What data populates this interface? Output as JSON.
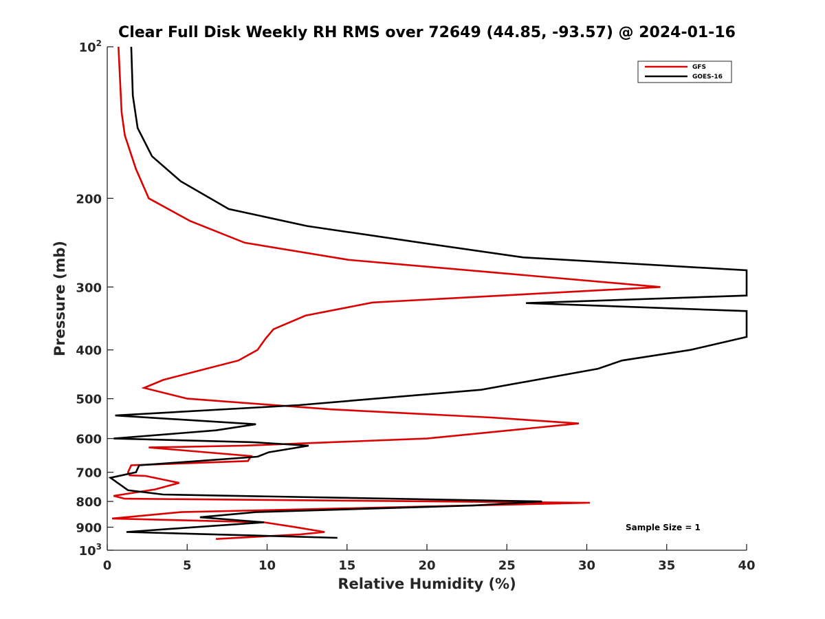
{
  "chart_data": {
    "type": "line",
    "title": "Clear Full Disk Weekly RH RMS over 72649 (44.85, -93.57) @ 2024-01-16",
    "xlabel": "Relative Humidity (%)",
    "ylabel": "Pressure (mb)",
    "xlim": [
      0,
      40
    ],
    "ylim": [
      100,
      1000
    ],
    "y_scale": "log",
    "y_reversed": true,
    "x_ticks": [
      "0",
      "5",
      "10",
      "15",
      "20",
      "25",
      "30",
      "35",
      "40"
    ],
    "y_ticks": [
      {
        "value": 100,
        "base": "10",
        "exp": "2"
      },
      {
        "value": 200,
        "label": "200"
      },
      {
        "value": 300,
        "label": "300"
      },
      {
        "value": 400,
        "label": "400"
      },
      {
        "value": 500,
        "label": "500"
      },
      {
        "value": 600,
        "label": "600"
      },
      {
        "value": 700,
        "label": "700"
      },
      {
        "value": 800,
        "label": "800"
      },
      {
        "value": 900,
        "label": "900"
      },
      {
        "value": 1000,
        "base": "10",
        "exp": "3"
      }
    ],
    "grid": false,
    "legend_position": "top-right",
    "series": [
      {
        "name": "GFS",
        "color": "#dd0000",
        "points": [
          [
            0.7,
            100
          ],
          [
            0.9,
            135
          ],
          [
            1.1,
            150
          ],
          [
            1.8,
            175
          ],
          [
            2.6,
            200
          ],
          [
            5.2,
            222
          ],
          [
            8.6,
            245
          ],
          [
            15.1,
            265
          ],
          [
            34.6,
            300
          ],
          [
            16.6,
            322
          ],
          [
            12.4,
            342
          ],
          [
            10.4,
            364
          ],
          [
            9.9,
            380
          ],
          [
            9.4,
            400
          ],
          [
            8.2,
            420
          ],
          [
            6.2,
            436
          ],
          [
            3.5,
            459
          ],
          [
            2.3,
            476
          ],
          [
            5.0,
            500
          ],
          [
            14.0,
            525
          ],
          [
            24.0,
            545
          ],
          [
            29.5,
            560
          ],
          [
            20.0,
            600
          ],
          [
            8.5,
            620
          ],
          [
            2.6,
            625
          ],
          [
            9.0,
            650
          ],
          [
            8.8,
            665
          ],
          [
            1.5,
            678
          ],
          [
            1.3,
            700
          ],
          [
            1.4,
            710
          ],
          [
            2.4,
            712
          ],
          [
            4.5,
            735
          ],
          [
            3.0,
            757
          ],
          [
            0.4,
            780
          ],
          [
            1.1,
            790
          ],
          [
            30.2,
            805
          ],
          [
            4.6,
            840
          ],
          [
            0.3,
            865
          ],
          [
            9.8,
            880
          ],
          [
            11.6,
            898
          ],
          [
            13.6,
            920
          ],
          [
            12.1,
            930
          ],
          [
            6.8,
            950
          ]
        ]
      },
      {
        "name": "GOES-16",
        "color": "#000000",
        "points": [
          [
            1.5,
            100
          ],
          [
            1.6,
            125
          ],
          [
            1.9,
            145
          ],
          [
            2.8,
            165
          ],
          [
            4.6,
            185
          ],
          [
            7.6,
            210
          ],
          [
            12.5,
            227
          ],
          [
            20.0,
            246
          ],
          [
            26.0,
            262
          ],
          [
            40.0,
            278
          ],
          [
            40.0,
            312
          ],
          [
            26.2,
            323
          ],
          [
            40.0,
            335
          ],
          [
            40.0,
            377
          ],
          [
            36.5,
            400
          ],
          [
            32.2,
            420
          ],
          [
            30.7,
            436
          ],
          [
            23.4,
            480
          ],
          [
            16.8,
            500
          ],
          [
            12.0,
            515
          ],
          [
            0.5,
            540
          ],
          [
            9.3,
            562
          ],
          [
            6.8,
            578
          ],
          [
            0.4,
            600
          ],
          [
            9.1,
            610
          ],
          [
            12.6,
            620
          ],
          [
            10.1,
            639
          ],
          [
            9.4,
            652
          ],
          [
            2.0,
            678
          ],
          [
            1.8,
            700
          ],
          [
            0.2,
            718
          ],
          [
            1.3,
            760
          ],
          [
            3.5,
            775
          ],
          [
            27.2,
            800
          ],
          [
            22.9,
            815
          ],
          [
            9.3,
            840
          ],
          [
            5.8,
            860
          ],
          [
            9.8,
            880
          ],
          [
            1.2,
            920
          ],
          [
            14.4,
            945
          ]
        ]
      }
    ],
    "annotation": "Sample Size = 1"
  }
}
